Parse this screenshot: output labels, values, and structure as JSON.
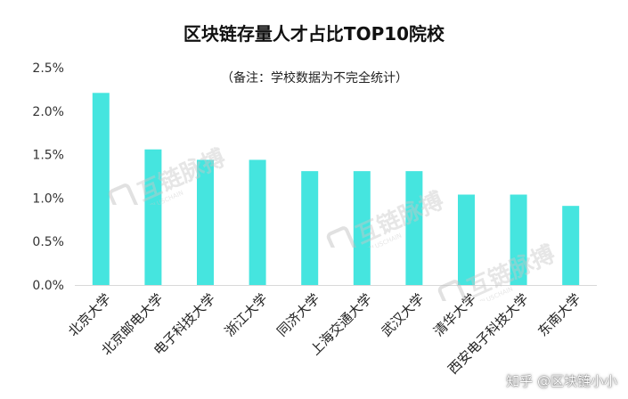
{
  "chart_data": {
    "type": "bar",
    "title": "区块链存量人才占比TOP10院校",
    "subtitle": "（备注：学校数据为不完全统计）",
    "categories": [
      "北京大学",
      "北京邮电大学",
      "电子科技大学",
      "浙江大学",
      "同济大学",
      "上海交通大学",
      "武汉大学",
      "清华大学",
      "西安电子科技大学",
      "东南大学"
    ],
    "values": [
      2.21,
      1.56,
      1.44,
      1.44,
      1.31,
      1.31,
      1.31,
      1.04,
      1.04,
      0.91
    ],
    "y_ticks": [
      "2.5%",
      "2.0%",
      "1.5%",
      "1.0%",
      "0.5%",
      "0.0%"
    ],
    "ylim": [
      0,
      2.5
    ],
    "unit": "%",
    "grid": false,
    "legend": "none",
    "colors": {
      "bar": "#45E5DF",
      "axis": "#D9D9D9",
      "text": "#333333"
    }
  },
  "watermark": {
    "brand": "互链脉搏",
    "sub": "IPLUSCHAIN"
  },
  "credit": "知乎 @区块链小小"
}
